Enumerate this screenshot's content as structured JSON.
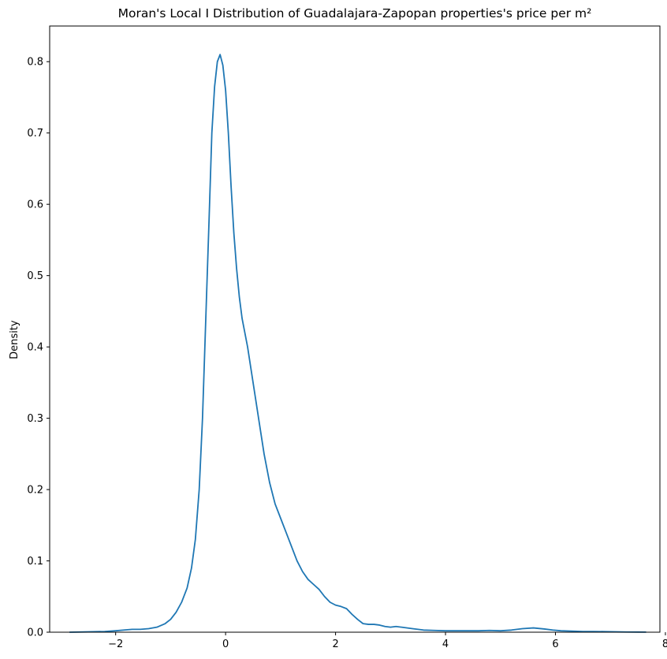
{
  "chart_data": {
    "type": "line",
    "title": "Moran's Local I Distribution of Guadalajara-Zapopan properties's price per m²",
    "xlabel": "",
    "ylabel": "Density",
    "xlim": [
      -3.2,
      7.9
    ],
    "ylim": [
      0,
      0.85
    ],
    "x_ticks": [
      -2,
      0,
      2,
      4,
      6,
      8
    ],
    "x_tick_labels": [
      "−2",
      "0",
      "2",
      "4",
      "6",
      "8"
    ],
    "y_ticks": [
      0.0,
      0.1,
      0.2,
      0.3,
      0.4,
      0.5,
      0.6,
      0.7,
      0.8
    ],
    "y_tick_labels": [
      "0.0",
      "0.1",
      "0.2",
      "0.3",
      "0.4",
      "0.5",
      "0.6",
      "0.7",
      "0.8"
    ],
    "grid": false,
    "series": [
      {
        "color": "#1f77b4",
        "x": [
          -2.84,
          -2.5,
          -2.2,
          -2.0,
          -1.85,
          -1.7,
          -1.55,
          -1.4,
          -1.25,
          -1.1,
          -1.0,
          -0.9,
          -0.8,
          -0.7,
          -0.62,
          -0.55,
          -0.48,
          -0.42,
          -0.36,
          -0.3,
          -0.25,
          -0.2,
          -0.15,
          -0.1,
          -0.05,
          0.0,
          0.05,
          0.1,
          0.15,
          0.2,
          0.25,
          0.3,
          0.4,
          0.5,
          0.6,
          0.7,
          0.8,
          0.9,
          1.0,
          1.1,
          1.2,
          1.3,
          1.4,
          1.5,
          1.6,
          1.7,
          1.8,
          1.9,
          2.0,
          2.1,
          2.2,
          2.3,
          2.4,
          2.5,
          2.6,
          2.7,
          2.8,
          2.9,
          3.0,
          3.1,
          3.2,
          3.4,
          3.6,
          3.8,
          4.0,
          4.2,
          4.4,
          4.6,
          4.8,
          5.0,
          5.2,
          5.4,
          5.6,
          5.8,
          5.95,
          6.1,
          6.3,
          6.5,
          6.7,
          6.9,
          7.1,
          7.3,
          7.5,
          7.65
        ],
        "y": [
          0.0,
          0.0005,
          0.001,
          0.002,
          0.003,
          0.004,
          0.004,
          0.005,
          0.007,
          0.012,
          0.018,
          0.028,
          0.042,
          0.062,
          0.09,
          0.13,
          0.2,
          0.3,
          0.44,
          0.58,
          0.7,
          0.765,
          0.8,
          0.81,
          0.795,
          0.76,
          0.7,
          0.625,
          0.56,
          0.51,
          0.47,
          0.44,
          0.4,
          0.35,
          0.3,
          0.25,
          0.21,
          0.18,
          0.16,
          0.14,
          0.12,
          0.1,
          0.085,
          0.074,
          0.067,
          0.06,
          0.05,
          0.042,
          0.038,
          0.036,
          0.033,
          0.025,
          0.018,
          0.012,
          0.011,
          0.011,
          0.01,
          0.008,
          0.007,
          0.008,
          0.007,
          0.005,
          0.003,
          0.0025,
          0.002,
          0.002,
          0.002,
          0.002,
          0.0025,
          0.002,
          0.003,
          0.005,
          0.006,
          0.0045,
          0.003,
          0.002,
          0.0015,
          0.001,
          0.001,
          0.0008,
          0.0005,
          0.0003,
          0.0002,
          0.0001
        ]
      }
    ]
  }
}
